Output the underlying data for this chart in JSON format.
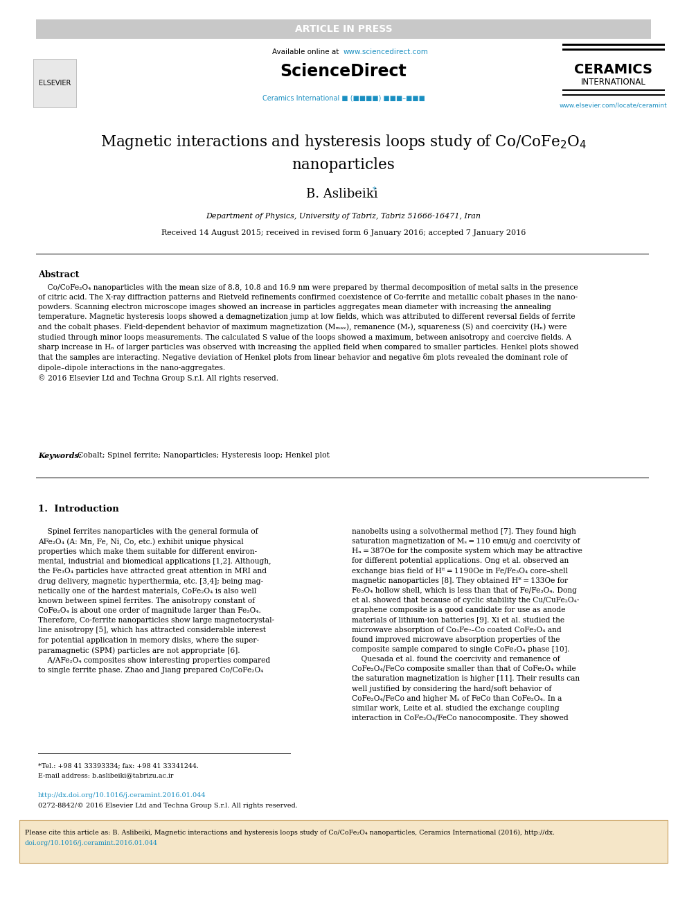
{
  "article_in_press_text": "ARTICLE IN PRESS",
  "article_in_press_bg": "#d0d0d0",
  "available_online_text": "Available online at ",
  "sciencedirect_url": "www.sciencedirect.com",
  "sciencedirect_logo": "ScienceDirect",
  "ceramics_line1": "CERAMICS",
  "ceramics_line2": "INTERNATIONAL",
  "ceramics_url": "www.elsevier.com/locate/ceramint",
  "journal_line": "Ceramics International ■ (■■■■) ■■■–■■■",
  "title_line1": "Magnetic interactions and hysteresis loops study of Co/CoFe$_2$O$_4$",
  "title_line2": "nanoparticles",
  "author": "B. Aslibeiki",
  "affiliation": "Department of Physics, University of Tabriz, Tabriz 51666-16471, Iran",
  "received": "Received 14 August 2015; received in revised form 6 January 2016; accepted 7 January 2016",
  "abstract_label": "Abstract",
  "keywords_label": "Keywords:",
  "keywords_text": "Cobalt; Spinel ferrite; Nanoparticles; Hysteresis loop; Henkel plot",
  "intro_section": "1.  Introduction",
  "footnote_tel": "*Tel.: +98 41 33393334; fax: +98 41 33341244.",
  "footnote_email": "E-mail address: b.aslibeiki@tabrizu.ac.ir",
  "doi_text": "http://dx.doi.org/10.1016/j.ceramint.2016.01.044",
  "issn_text": "0272-8842/© 2016 Elsevier Ltd and Techna Group S.r.l. All rights reserved.",
  "cite_text": "Please cite this article as: B. Aslibeiki, Magnetic interactions and hysteresis loops study of Co/CoFe₂O₄ nanoparticles, Ceramics International (2016), http://dx.\ndoi.org/10.1016/j.ceramint.2016.01.044",
  "color_blue": "#1a8fc1",
  "color_black": "#1a1a1a",
  "color_gray_header": "#c8c8c8",
  "color_cite_bg": "#f5e6c8",
  "fig_width": 9.92,
  "fig_height": 13.23,
  "dpi": 100
}
